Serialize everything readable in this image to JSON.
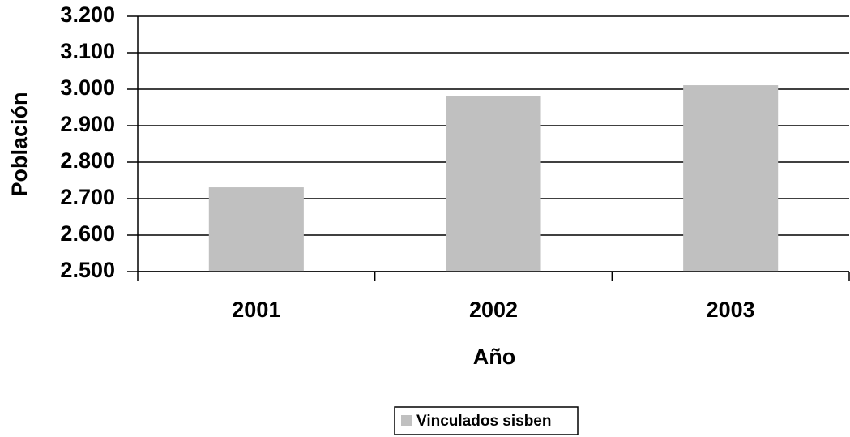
{
  "chart_data": {
    "type": "bar",
    "categories": [
      "2001",
      "2002",
      "2003"
    ],
    "series": [
      {
        "name": "Vinculados sisben",
        "color": "#c0c0c0",
        "values": [
          2731,
          2980,
          3011
        ]
      }
    ],
    "xlabel": "Año",
    "ylabel": "Población",
    "ylim": [
      2500,
      3200
    ],
    "yticks": [
      {
        "value": 2500,
        "label": "2.500"
      },
      {
        "value": 2600,
        "label": "2.600"
      },
      {
        "value": 2700,
        "label": "2.700"
      },
      {
        "value": 2800,
        "label": "2.800"
      },
      {
        "value": 2900,
        "label": "2.900"
      },
      {
        "value": 3000,
        "label": "3.000"
      },
      {
        "value": 3100,
        "label": "3.100"
      },
      {
        "value": 3200,
        "label": "3.200"
      }
    ],
    "grid": true,
    "legend": "bottom"
  }
}
